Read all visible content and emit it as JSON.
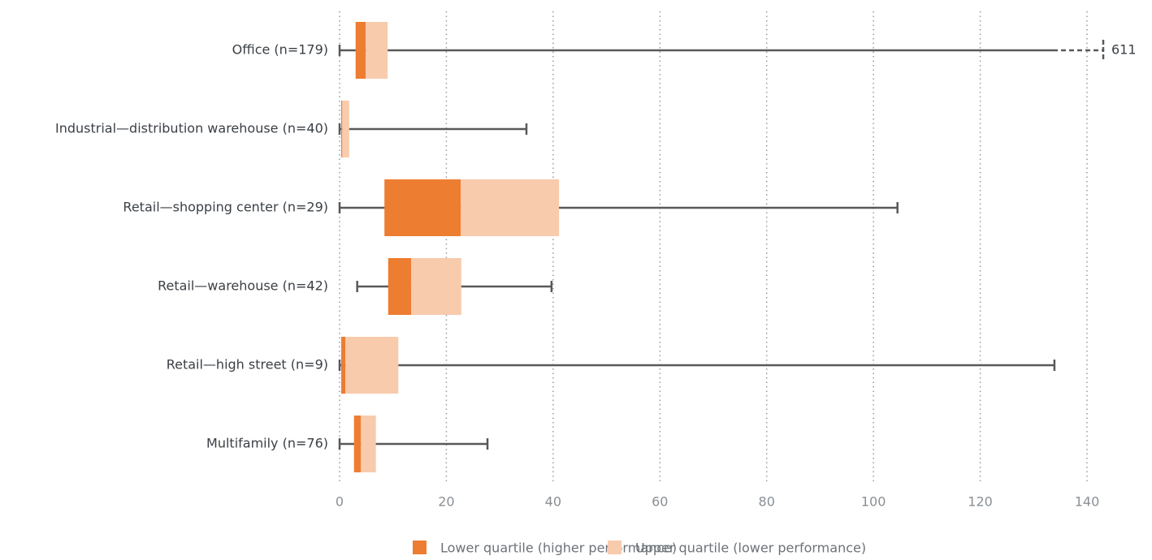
{
  "chart_data": {
    "type": "box",
    "categories": [
      "Office (n=179)",
      "Industrial—distribution warehouse (n=40)",
      "Retail—shopping center (n=29)",
      "Retail—warehouse (n=42)",
      "Retail—high street (n=9)",
      "Multifamily (n=76)"
    ],
    "boxes": [
      {
        "min": 0,
        "q1": 3.0,
        "median": 4.9,
        "q3": 9.0,
        "max": 611
      },
      {
        "min": 0,
        "q1": 0.3,
        "median": 0.5,
        "q3": 1.8,
        "max": 35.0
      },
      {
        "min": 0,
        "q1": 8.4,
        "median": 22.7,
        "q3": 41.1,
        "max": 104.5
      },
      {
        "min": 3.3,
        "q1": 9.1,
        "median": 13.4,
        "q3": 22.8,
        "max": 39.7
      },
      {
        "min": 0,
        "q1": 0.3,
        "median": 1.1,
        "q3": 11.0,
        "max": 133.9
      },
      {
        "min": 0,
        "q1": 2.7,
        "median": 4.0,
        "q3": 6.8,
        "max": 27.7
      }
    ],
    "segments": [
      {
        "name": "Lower quartile (higher performance)",
        "color": "#ed7d31"
      },
      {
        "name": "Upper quartile (lower performance)",
        "color": "#f8cbad"
      }
    ],
    "whisker_color": "#595959",
    "xlim": [
      0,
      140
    ],
    "xticks": [
      0,
      20,
      40,
      60,
      80,
      100,
      120,
      140
    ],
    "grid": true
  }
}
